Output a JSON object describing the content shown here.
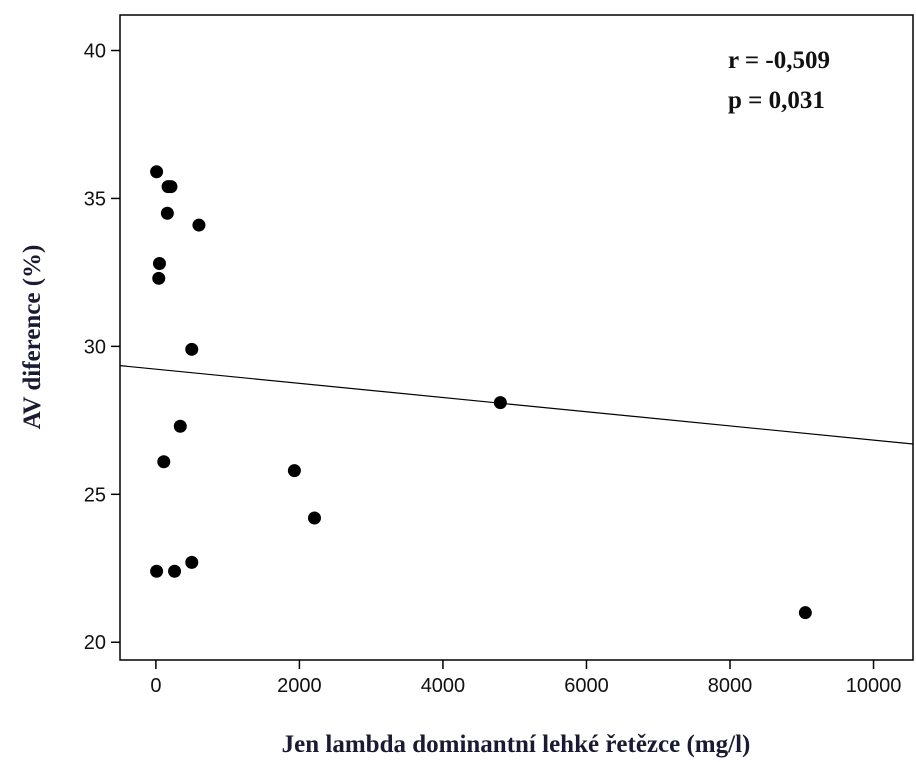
{
  "chart_data": {
    "type": "scatter",
    "title": "",
    "xlabel": "Jen lambda dominantní lehké řetězce (mg/l)",
    "ylabel": "AV diference (%)",
    "xlim": [
      -500,
      10550
    ],
    "ylim": [
      19.4,
      41.2
    ],
    "xticks": [
      0,
      2000,
      4000,
      6000,
      8000,
      10000
    ],
    "yticks": [
      20,
      25,
      30,
      35,
      40
    ],
    "grid": false,
    "annotations": [
      {
        "text": "r = -0,509"
      },
      {
        "text": "p = 0,031"
      }
    ],
    "series": [
      {
        "points": [
          {
            "x": 10,
            "y": 35.9
          },
          {
            "x": 170,
            "y": 35.4
          },
          {
            "x": 210,
            "y": 35.4
          },
          {
            "x": 160,
            "y": 34.5
          },
          {
            "x": 600,
            "y": 34.1
          },
          {
            "x": 50,
            "y": 32.8
          },
          {
            "x": 40,
            "y": 32.3
          },
          {
            "x": 500,
            "y": 29.9
          },
          {
            "x": 4800,
            "y": 28.1
          },
          {
            "x": 340,
            "y": 27.3
          },
          {
            "x": 110,
            "y": 26.1
          },
          {
            "x": 1930,
            "y": 25.8
          },
          {
            "x": 2210,
            "y": 24.2
          },
          {
            "x": 500,
            "y": 22.7
          },
          {
            "x": 10,
            "y": 22.4
          },
          {
            "x": 260,
            "y": 22.4
          },
          {
            "x": 9050,
            "y": 21.0
          }
        ]
      }
    ],
    "fit_line": {
      "type": "linear",
      "x0": -500,
      "y0": 29.35,
      "x1": 10550,
      "y1": 26.7
    }
  }
}
